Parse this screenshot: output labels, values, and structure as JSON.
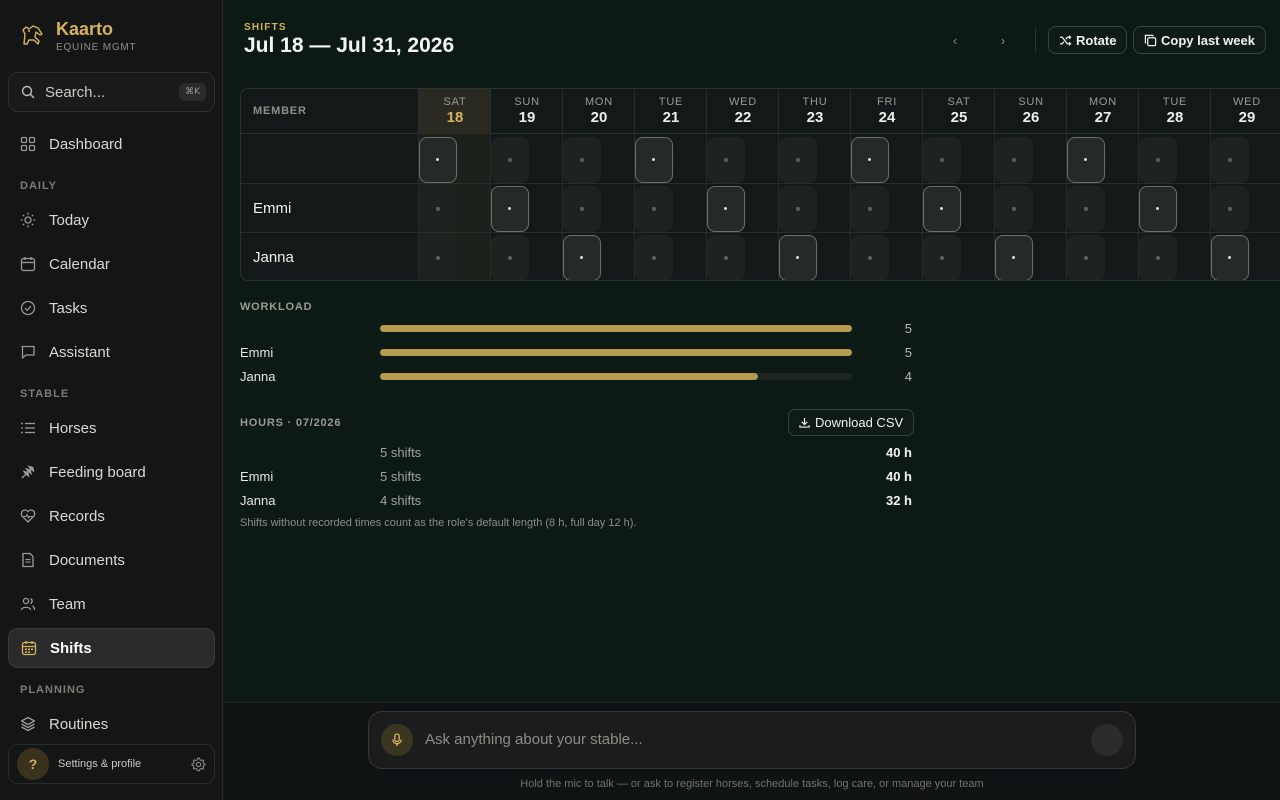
{
  "brand": {
    "name": "Kaarto",
    "subtitle": "EQUINE MGMT"
  },
  "search": {
    "placeholder": "Search...",
    "shortcut": "⌘K"
  },
  "sidebar": {
    "dashboard": "Dashboard",
    "section_daily": "DAILY",
    "today": "Today",
    "calendar": "Calendar",
    "tasks": "Tasks",
    "assistant": "Assistant",
    "section_stable": "STABLE",
    "horses": "Horses",
    "feeding": "Feeding board",
    "records": "Records",
    "documents": "Documents",
    "team": "Team",
    "shifts": "Shifts",
    "section_planning": "PLANNING",
    "routines": "Routines"
  },
  "settings": {
    "avatar": "?",
    "label": "Settings & profile"
  },
  "header": {
    "eyebrow": "SHIFTS",
    "title": "Jul 18 — Jul 31, 2026",
    "prev": "‹",
    "next": "›",
    "rotate": "Rotate",
    "copy_last_week": "Copy last week"
  },
  "grid": {
    "member_header": "MEMBER",
    "days": [
      {
        "dow": "SAT",
        "num": "18"
      },
      {
        "dow": "SUN",
        "num": "19"
      },
      {
        "dow": "MON",
        "num": "20"
      },
      {
        "dow": "TUE",
        "num": "21"
      },
      {
        "dow": "WED",
        "num": "22"
      },
      {
        "dow": "THU",
        "num": "23"
      },
      {
        "dow": "FRI",
        "num": "24"
      },
      {
        "dow": "SAT",
        "num": "25"
      },
      {
        "dow": "SUN",
        "num": "26"
      },
      {
        "dow": "MON",
        "num": "27"
      },
      {
        "dow": "TUE",
        "num": "28"
      },
      {
        "dow": "WED",
        "num": "29"
      }
    ],
    "rows": [
      {
        "name": "",
        "assigned": [
          1,
          0,
          0,
          1,
          0,
          0,
          1,
          0,
          0,
          1,
          0,
          0
        ]
      },
      {
        "name": "Emmi",
        "assigned": [
          0,
          1,
          0,
          0,
          1,
          0,
          0,
          1,
          0,
          0,
          1,
          0
        ]
      },
      {
        "name": "Janna",
        "assigned": [
          0,
          0,
          1,
          0,
          0,
          1,
          0,
          0,
          1,
          0,
          0,
          1
        ]
      }
    ]
  },
  "workload": {
    "label": "WORKLOAD",
    "rows": [
      {
        "name": "",
        "count": "5",
        "fraction": 1.0
      },
      {
        "name": "Emmi",
        "count": "5",
        "fraction": 1.0
      },
      {
        "name": "Janna",
        "count": "4",
        "fraction": 0.8
      }
    ]
  },
  "hours": {
    "label": "HOURS · 07/2026",
    "download": "Download CSV",
    "rows": [
      {
        "name": "",
        "shifts": "5 shifts",
        "hours": "40 h"
      },
      {
        "name": "Emmi",
        "shifts": "5 shifts",
        "hours": "40 h"
      },
      {
        "name": "Janna",
        "shifts": "4 shifts",
        "hours": "32 h"
      }
    ],
    "note": "Shifts without recorded times count as the role's default length (8 h, full day 12 h)."
  },
  "assistant_bar": {
    "placeholder": "Ask anything about your stable...",
    "hint": "Hold the mic to talk — or ask to register horses, schedule tasks, log care, or manage your team"
  },
  "colors": {
    "accent": "#d4b15a",
    "background": "#0c1914",
    "sidebar": "#141515"
  }
}
